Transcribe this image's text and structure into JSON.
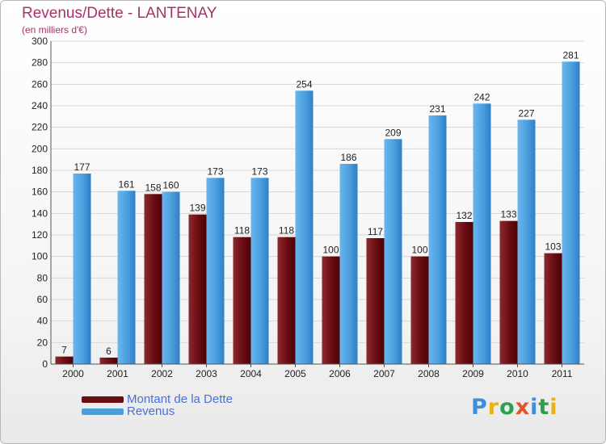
{
  "chart_data": {
    "type": "bar",
    "title": "Revenus/Dette - LANTENAY",
    "subtitle": "(en milliers d'€)",
    "categories": [
      "2000",
      "2001",
      "2002",
      "2003",
      "2004",
      "2005",
      "2006",
      "2007",
      "2008",
      "2009",
      "2010",
      "2011"
    ],
    "series": [
      {
        "name": "Montant de la Dette",
        "color": "#6b0c12",
        "values": [
          7,
          6,
          158,
          139,
          118,
          118,
          100,
          117,
          100,
          132,
          133,
          103
        ]
      },
      {
        "name": "Revenus",
        "color": "#4a9fdf",
        "values": [
          177,
          161,
          160,
          173,
          173,
          254,
          186,
          209,
          231,
          242,
          227,
          281
        ]
      }
    ],
    "y_ticks": [
      "0",
      "20",
      "40",
      "60",
      "80",
      "100",
      "120",
      "140",
      "160",
      "180",
      "200",
      "220",
      "240",
      "260",
      "280",
      "300"
    ],
    "ylim": [
      0,
      300
    ],
    "grid": true,
    "legend_position": "bottom-left"
  },
  "logo": {
    "letters": [
      {
        "ch": "P",
        "color": "#3f8fd8"
      },
      {
        "ch": "r",
        "color": "#e8b312"
      },
      {
        "ch": "o",
        "color": "#2e9f4a"
      },
      {
        "ch": "x",
        "color": "#e0542a"
      },
      {
        "ch": "i",
        "color": "#3f8fd8"
      },
      {
        "ch": "t",
        "color": "#2e9f4a"
      },
      {
        "ch": "i",
        "color": "#e8b312"
      }
    ]
  }
}
